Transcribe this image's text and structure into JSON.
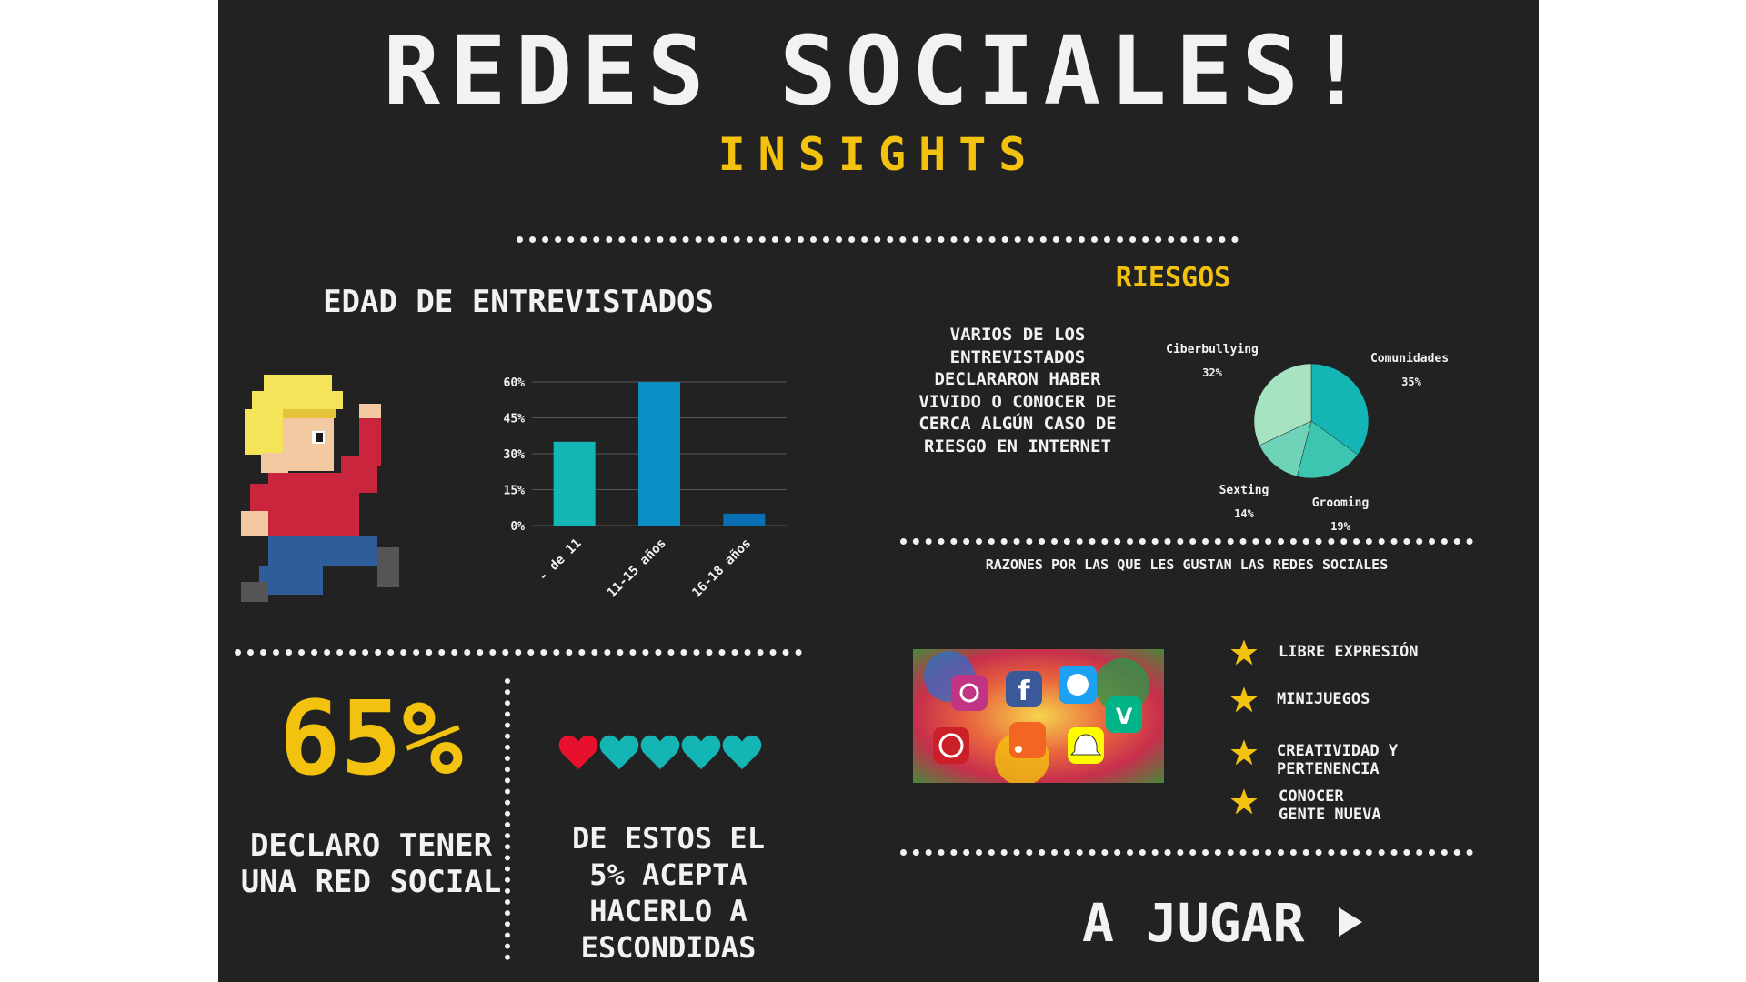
{
  "header": {
    "title": "REDES SOCIALES!",
    "subtitle": "INSIGHTS"
  },
  "age_section": {
    "heading": "EDAD DE ENTREVISTADOS"
  },
  "risks": {
    "heading": "RIESGOS",
    "text": "VARIOS DE LOS ENTREVISTADOS DECLARARON HABER VIVIDO O CONOCER DE CERCA ALGÚN CASO DE RIESGO EN INTERNET"
  },
  "stat_left": {
    "value": "65%",
    "caption_line1": "DECLARO TENER",
    "caption_line2": "UNA RED SOCIAL"
  },
  "stat_right": {
    "line1": "DE ESTOS EL",
    "line2": "5% ACEPTA",
    "line3": "HACERLO A",
    "line4": "ESCONDIDAS",
    "hearts": {
      "total": 5,
      "highlighted": 1,
      "highlight_color": "#e8112d",
      "base_color": "#14b5b5"
    }
  },
  "reasons": {
    "heading": "RAZONES POR LAS QUE LES GUSTAN LAS REDES SOCIALES",
    "items": [
      "LIBRE EXPRESIÓN",
      "MINIJUEGOS",
      "CREATIVIDAD Y PERTENENCIA",
      "CONOCER GENTE NUEVA"
    ],
    "star_color": "#f2c20f"
  },
  "cta": {
    "label": "A JUGAR",
    "icon": "play-icon"
  },
  "colors": {
    "background": "#222222",
    "accent_yellow": "#f2c20f",
    "text": "#f2f2f2",
    "teal": "#14b5b5",
    "blue": "#0a8ec4"
  },
  "chart_data": [
    {
      "type": "bar",
      "categories": [
        "- de 11",
        "11-15 años",
        "16-18 años"
      ],
      "values": [
        35,
        60,
        5
      ],
      "ylim": [
        0,
        60
      ],
      "yticks": [
        "0%",
        "15%",
        "30%",
        "45%",
        "60%"
      ],
      "ytick_values": [
        0,
        15,
        30,
        45,
        60
      ],
      "colors": [
        "#14b5b5",
        "#0a8ec4",
        "#0a6fb2"
      ],
      "grid": true
    },
    {
      "type": "pie",
      "categories": [
        "Comunidades",
        "Grooming",
        "Sexting",
        "Ciberbullying"
      ],
      "values": [
        35,
        19,
        14,
        32
      ],
      "value_labels": [
        "35%",
        "19%",
        "14%",
        "32%"
      ],
      "colors": [
        "#14b5b5",
        "#3cc6b0",
        "#6fd3b8",
        "#a6e3c0"
      ]
    }
  ]
}
